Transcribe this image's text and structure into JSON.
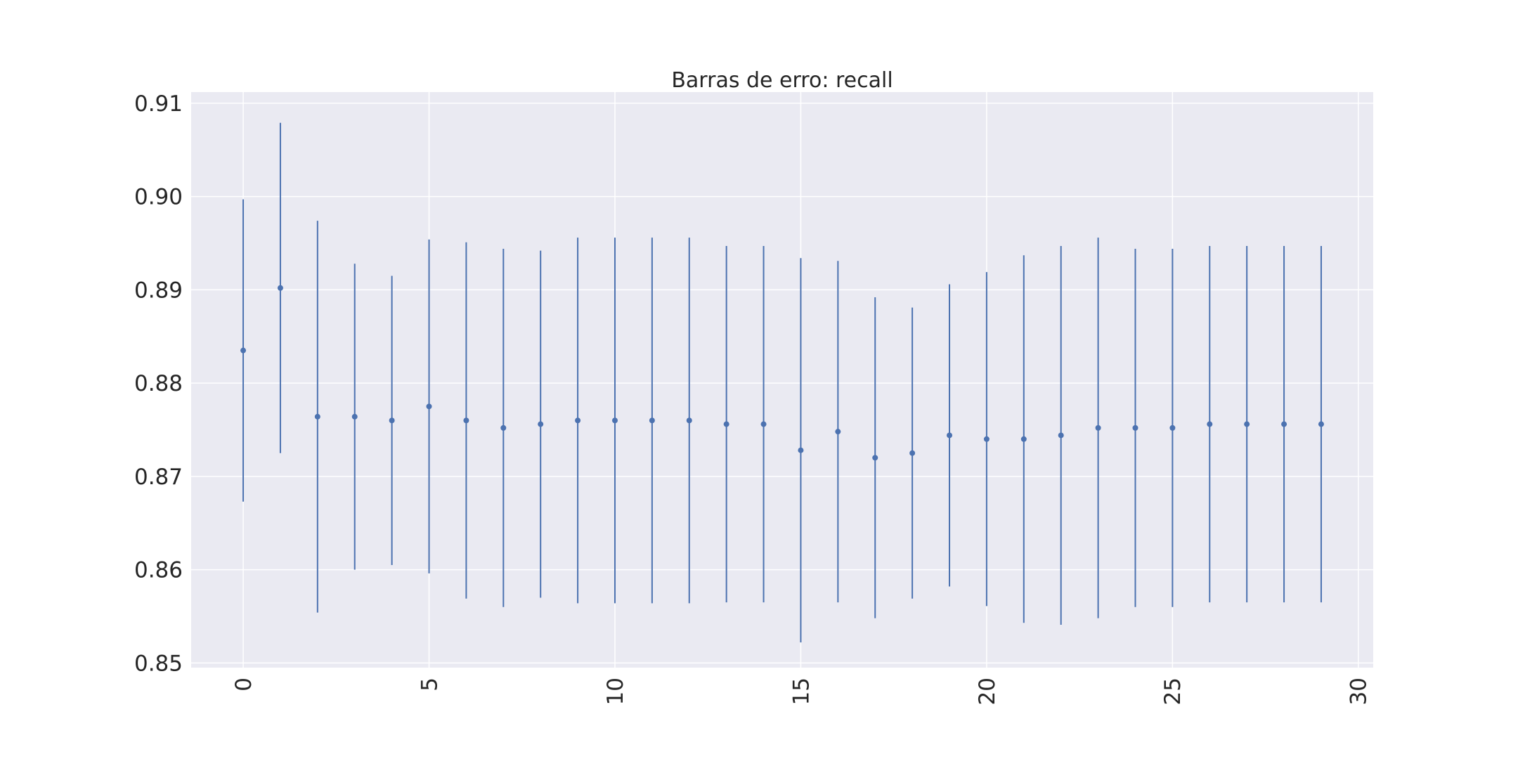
{
  "chart_data": {
    "type": "errorbar",
    "title": "Barras de erro: recall",
    "xlabel": "",
    "ylabel": "",
    "xlim": [
      -1.4,
      30.4
    ],
    "ylim": [
      0.8495,
      0.9112
    ],
    "xticks": [
      0,
      5,
      10,
      15,
      20,
      25,
      30
    ],
    "yticks": [
      0.85,
      0.86,
      0.87,
      0.88,
      0.89,
      0.9,
      0.91
    ],
    "ytick_labels": [
      "0.85",
      "0.86",
      "0.87",
      "0.88",
      "0.89",
      "0.90",
      "0.91"
    ],
    "xtick_labels": [
      "0",
      "5",
      "10",
      "15",
      "20",
      "25",
      "30"
    ],
    "grid": true,
    "series": [
      {
        "name": "recall",
        "color": "#4c72b0",
        "x": [
          0,
          1,
          2,
          3,
          4,
          5,
          6,
          7,
          8,
          9,
          10,
          11,
          12,
          13,
          14,
          15,
          16,
          17,
          18,
          19,
          20,
          21,
          22,
          23,
          24,
          25,
          26,
          27,
          28,
          29
        ],
        "y": [
          0.8835,
          0.8902,
          0.8764,
          0.8764,
          0.876,
          0.8775,
          0.876,
          0.8752,
          0.8756,
          0.876,
          0.876,
          0.876,
          0.876,
          0.8756,
          0.8756,
          0.8728,
          0.8748,
          0.872,
          0.8725,
          0.8744,
          0.874,
          0.874,
          0.8744,
          0.8752,
          0.8752,
          0.8752,
          0.8756,
          0.8756,
          0.8756,
          0.8756
        ],
        "err": [
          0.0162,
          0.0177,
          0.021,
          0.0164,
          0.0155,
          0.0179,
          0.0191,
          0.0192,
          0.0186,
          0.0196,
          0.0196,
          0.0196,
          0.0196,
          0.0191,
          0.0191,
          0.0206,
          0.0183,
          0.0172,
          0.0156,
          0.0162,
          0.0179,
          0.0197,
          0.0203,
          0.0204,
          0.0192,
          0.0192,
          0.0191,
          0.0191,
          0.0191,
          0.0191
        ]
      }
    ]
  }
}
